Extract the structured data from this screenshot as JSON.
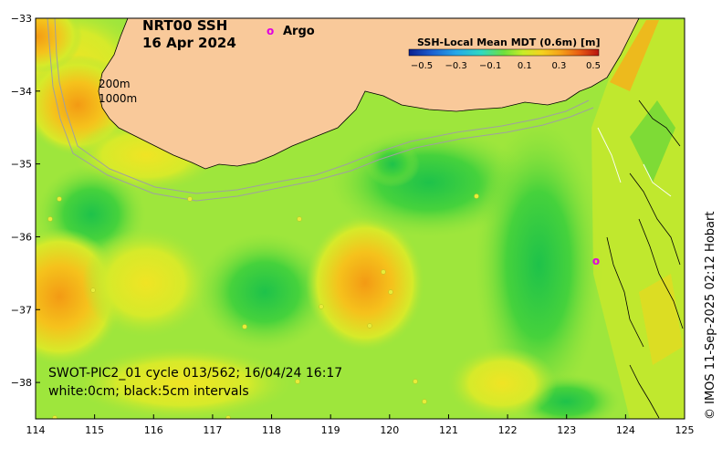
{
  "map": {
    "title_line1": "NRT00 SSH",
    "title_line2": "16 Apr 2024",
    "legend_symbol": "o",
    "legend_label": "Argo",
    "depth_label_1": "200m",
    "depth_label_2": "1000m",
    "swath_note_line1": "SWOT-PIC2_01 cycle 013/562; 16/04/24 16:17",
    "swath_note_line2": "white:0cm; black:5cm intervals",
    "credit": "© IMOS 11-Sep-2025 02:12 Hobart",
    "x_ticks": [
      "114",
      "115",
      "116",
      "117",
      "118",
      "119",
      "120",
      "121",
      "122",
      "123",
      "124",
      "125"
    ],
    "y_ticks": [
      "−33",
      "−34",
      "−35",
      "−36",
      "−37",
      "−38"
    ],
    "lon_range": [
      114,
      125
    ],
    "lat_range": [
      -38.5,
      -33
    ],
    "colorbar": {
      "title": "SSH-Local Mean MDT (0.6m) [m]",
      "ticks": [
        "−0.5",
        "−0.3",
        "−0.1",
        "0.1",
        "0.3",
        "0.5"
      ],
      "range": [
        -0.5,
        0.5
      ],
      "colors": [
        "#0a1f8f",
        "#1d5fd0",
        "#26a8e8",
        "#2fd9c2",
        "#6ee03c",
        "#c8ec28",
        "#f5d21e",
        "#f5a018",
        "#e85a12",
        "#b81410"
      ]
    },
    "colors": {
      "land": "#f9c99a",
      "ocean_base": "#9ee63c",
      "argo": "#e000e0"
    },
    "argo_floats": [
      {
        "lon": 123.5,
        "lat": -36.33
      }
    ]
  }
}
